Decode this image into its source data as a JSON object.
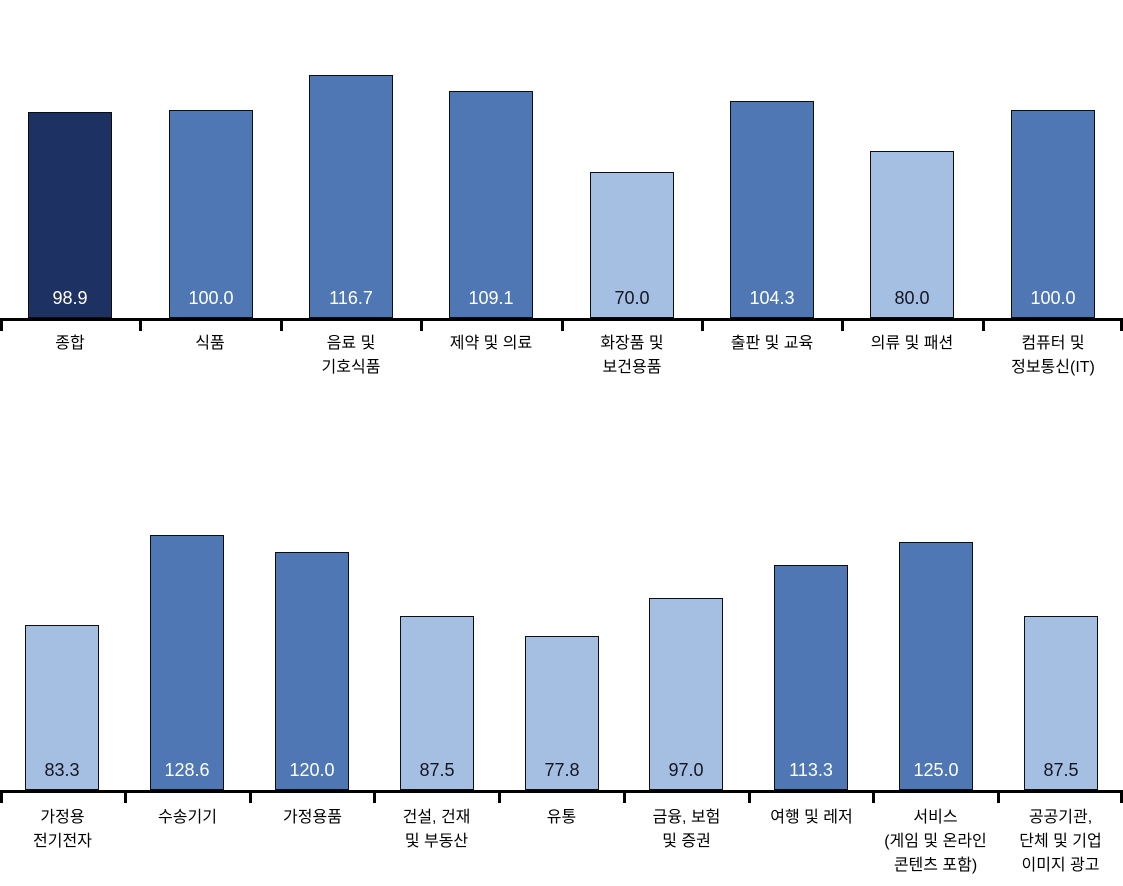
{
  "page": {
    "background_color": "#ffffff",
    "title": ""
  },
  "colors": {
    "bar_dark": "#1E3163",
    "bar_medium": "#4F77B3",
    "bar_light": "#A5BFE2",
    "bar_border": "#0d0d14",
    "axis": "#000000",
    "value_text_on_dark": "#FFFFFF",
    "value_text_on_light": "#15151f",
    "category_text": "#000000"
  },
  "chart_data": [
    {
      "type": "bar",
      "title": "",
      "xlabel": "",
      "ylabel": "",
      "y_axis_hidden": true,
      "grid": false,
      "legend": "none",
      "ylim": [
        0,
        150
      ],
      "categories": [
        "종합",
        "식품",
        "음료 및\n기호식품",
        "제약 및 의료",
        "화장품 및\n보건용품",
        "출판 및 교육",
        "의류 및 패션",
        "컴퓨터 및\n정보통신(IT)"
      ],
      "values": [
        98.9,
        100.0,
        116.7,
        109.1,
        70.0,
        104.3,
        80.0,
        100.0
      ],
      "value_labels": [
        "98.9",
        "100.0",
        "116.7",
        "109.1",
        "70.0",
        "104.3",
        "80.0",
        "100.0"
      ],
      "bar_tones": [
        "dark",
        "medium",
        "medium",
        "medium",
        "light",
        "medium",
        "light",
        "medium"
      ]
    },
    {
      "type": "bar",
      "title": "",
      "xlabel": "",
      "ylabel": "",
      "y_axis_hidden": true,
      "grid": false,
      "legend": "none",
      "ylim": [
        0,
        150
      ],
      "categories": [
        "가정용\n전기전자",
        "수송기기",
        "가정용품",
        "건설, 건재\n및 부동산",
        "유통",
        "금융, 보험\n및 증권",
        "여행 및 레저",
        "서비스\n(게임 및 온라인\n콘텐츠 포함)",
        "공공기관,\n단체 및 기업\n이미지 광고"
      ],
      "values": [
        83.3,
        128.6,
        120.0,
        87.5,
        77.8,
        97.0,
        113.3,
        125.0,
        87.5
      ],
      "value_labels": [
        "83.3",
        "128.6",
        "120.0",
        "87.5",
        "77.8",
        "97.0",
        "113.3",
        "125.0",
        "87.5"
      ],
      "bar_tones": [
        "light",
        "medium",
        "medium",
        "light",
        "light",
        "light",
        "medium",
        "medium",
        "light"
      ]
    }
  ]
}
